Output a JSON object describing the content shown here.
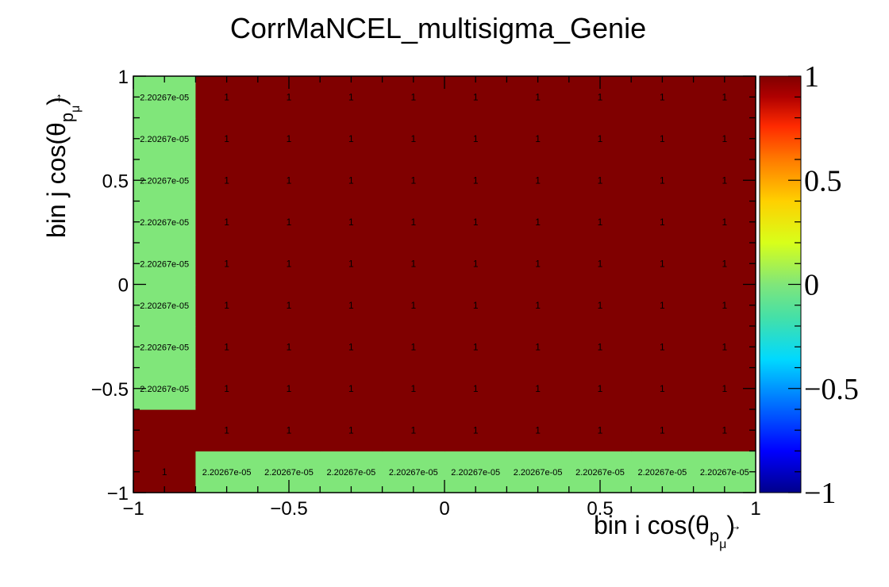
{
  "chart_data": {
    "type": "heatmap",
    "title": "CorrMaNCEL_multisigma_Genie",
    "xlabel": "bin i cos(θ",
    "xlabel_sub": "p",
    "xlabel_subsub": "μ",
    "xlabel_close": ")",
    "ylabel": "bin j cos(θ",
    "ylabel_sub": "p",
    "ylabel_subsub": "μ",
    "ylabel_close": ")",
    "xlim": [
      -1,
      1
    ],
    "ylim": [
      -1,
      1
    ],
    "zlim": [
      -1,
      1
    ],
    "nbins_x": 10,
    "nbins_y": 10,
    "x_ticks": [
      "−1",
      "−0.5",
      "0",
      "0.5",
      "1"
    ],
    "y_ticks": [
      "−1",
      "−0.5",
      "0",
      "0.5",
      "1"
    ],
    "z_ticks": [
      "−1",
      "−0.5",
      "0",
      "0.5",
      "1"
    ],
    "cell_values": [
      [
        1,
        2.20267e-05,
        2.20267e-05,
        2.20267e-05,
        2.20267e-05,
        2.20267e-05,
        2.20267e-05,
        2.20267e-05,
        2.20267e-05,
        2.20267e-05
      ],
      [
        null,
        1,
        1,
        1,
        1,
        1,
        1,
        1,
        1,
        1
      ],
      [
        2.20267e-05,
        1,
        1,
        1,
        1,
        1,
        1,
        1,
        1,
        1
      ],
      [
        2.20267e-05,
        1,
        1,
        1,
        1,
        1,
        1,
        1,
        1,
        1
      ],
      [
        2.20267e-05,
        1,
        1,
        1,
        1,
        1,
        1,
        1,
        1,
        1
      ],
      [
        2.20267e-05,
        1,
        1,
        1,
        1,
        1,
        1,
        1,
        1,
        1
      ],
      [
        2.20267e-05,
        1,
        1,
        1,
        1,
        1,
        1,
        1,
        1,
        1
      ],
      [
        2.20267e-05,
        1,
        1,
        1,
        1,
        1,
        1,
        1,
        1,
        1
      ],
      [
        2.20267e-05,
        1,
        1,
        1,
        1,
        1,
        1,
        1,
        1,
        1
      ],
      [
        2.20267e-05,
        1,
        1,
        1,
        1,
        1,
        1,
        1,
        1,
        1
      ]
    ],
    "cell_labels": [
      [
        "1",
        "2.20267e-05",
        "2.20267e-05",
        "2.20267e-05",
        "2.20267e-05",
        "2.20267e-05",
        "2.20267e-05",
        "2.20267e-05",
        "2.20267e-05",
        "2.20267e-05"
      ],
      [
        "",
        "1",
        "1",
        "1",
        "1",
        "1",
        "1",
        "1",
        "1",
        "1"
      ],
      [
        "2.20267e-05",
        "1",
        "1",
        "1",
        "1",
        "1",
        "1",
        "1",
        "1",
        "1"
      ],
      [
        "2.20267e-05",
        "1",
        "1",
        "1",
        "1",
        "1",
        "1",
        "1",
        "1",
        "1"
      ],
      [
        "2.20267e-05",
        "1",
        "1",
        "1",
        "1",
        "1",
        "1",
        "1",
        "1",
        "1"
      ],
      [
        "2.20267e-05",
        "1",
        "1",
        "1",
        "1",
        "1",
        "1",
        "1",
        "1",
        "1"
      ],
      [
        "2.20267e-05",
        "1",
        "1",
        "1",
        "1",
        "1",
        "1",
        "1",
        "1",
        "1"
      ],
      [
        "2.20267e-05",
        "1",
        "1",
        "1",
        "1",
        "1",
        "1",
        "1",
        "1",
        "1"
      ],
      [
        "2.20267e-05",
        "1",
        "1",
        "1",
        "1",
        "1",
        "1",
        "1",
        "1",
        "1"
      ],
      [
        "2.20267e-05",
        "1",
        "1",
        "1",
        "1",
        "1",
        "1",
        "1",
        "1",
        "1"
      ]
    ],
    "colors": {
      "high": "#800000",
      "zero": "#80e67a",
      "palette": [
        "#00008b",
        "#0000ff",
        "#0077ff",
        "#00d9ff",
        "#44e0a8",
        "#80e67a",
        "#d8ff1a",
        "#ffd000",
        "#ff7a00",
        "#ff2a00",
        "#b00000",
        "#800000"
      ]
    },
    "legend": "none",
    "grid": false
  }
}
